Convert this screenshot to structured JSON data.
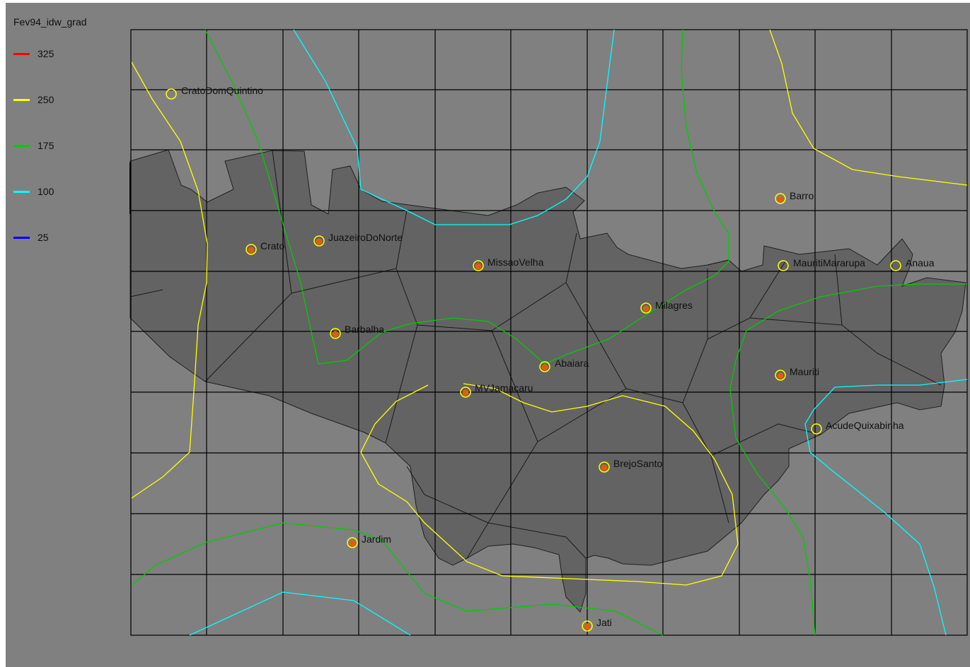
{
  "legend": {
    "title": "Fev94_idw_grad",
    "items": [
      {
        "label": "325",
        "color": "#ff0000"
      },
      {
        "label": "250",
        "color": "#ffff00"
      },
      {
        "label": "175",
        "color": "#00cc00"
      },
      {
        "label": "100",
        "color": "#00ffff"
      },
      {
        "label": "25",
        "color": "#0000ff"
      }
    ]
  },
  "colors": {
    "background": "#808080",
    "region_fill": "#636363",
    "grid_lines": "#000000",
    "station_marker": "#e06000",
    "station_ring": "#ffff00"
  },
  "stations": [
    {
      "name": "CratoDomQuintino",
      "has_value": false
    },
    {
      "name": "Crato",
      "has_value": true
    },
    {
      "name": "JuazeiroDoNorte",
      "has_value": true
    },
    {
      "name": "MissaoVelha",
      "has_value": true
    },
    {
      "name": "Barbalha",
      "has_value": true
    },
    {
      "name": "Milagres",
      "has_value": true
    },
    {
      "name": "Abaiara",
      "has_value": true
    },
    {
      "name": "MVJamacaru",
      "has_value": true
    },
    {
      "name": "BrejoSanto",
      "has_value": true
    },
    {
      "name": "Jardim",
      "has_value": true
    },
    {
      "name": "Jati",
      "has_value": true
    },
    {
      "name": "Barro",
      "has_value": true
    },
    {
      "name": "MauritiMararupa",
      "has_value": false
    },
    {
      "name": "Anaua",
      "has_value": false
    },
    {
      "name": "Mauriti",
      "has_value": true
    },
    {
      "name": "AcudeQuixabinha",
      "has_value": false
    }
  ]
}
